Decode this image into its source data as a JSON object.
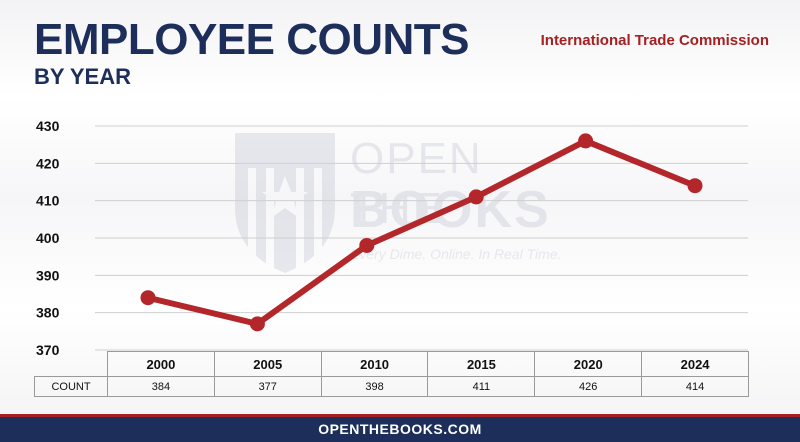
{
  "header": {
    "title": "EMPLOYEE COUNTS",
    "subtitle": "BY YEAR",
    "agency": "International Trade Commission"
  },
  "watermark": {
    "line1": "OPEN THE",
    "line2": "BOOKS",
    "tagline": "Every Dime. Online. In Real Time."
  },
  "table": {
    "row_label": "COUNT"
  },
  "footer": {
    "text": "OPENTHEBOOKS.COM"
  },
  "colors": {
    "line": "#b3262a",
    "navy": "#1d2e5b",
    "accent": "#a52022",
    "grid": "#cfcfcf"
  },
  "chart_data": {
    "type": "line",
    "title": "EMPLOYEE COUNTS",
    "subtitle": "BY YEAR",
    "categories": [
      "2000",
      "2005",
      "2010",
      "2015",
      "2020",
      "2024"
    ],
    "series": [
      {
        "name": "COUNT",
        "values": [
          384,
          377,
          398,
          411,
          426,
          414
        ]
      }
    ],
    "ylim": [
      370,
      430
    ],
    "yticks": [
      370,
      380,
      390,
      400,
      410,
      420,
      430
    ],
    "grid": true
  }
}
